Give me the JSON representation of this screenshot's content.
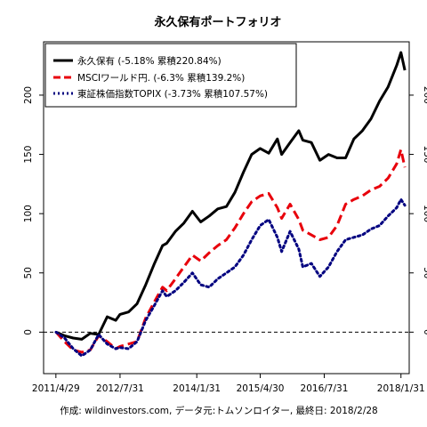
{
  "chart_data": {
    "type": "line",
    "title": "永久保有ポートフォリオ",
    "footer": "作成: wildinvestors.com, データ元:トムソンロイター, 最終日: 2018/2/28",
    "xlabel": "",
    "ylabel": "",
    "x_ticks": [
      {
        "date": "2011-04-29",
        "label": "2011/4/29"
      },
      {
        "date": "2012-07-31",
        "label": "2012/7/31"
      },
      {
        "date": "2014-01-31",
        "label": "2014/1/31"
      },
      {
        "date": "2015-04-30",
        "label": "2015/4/30"
      },
      {
        "date": "2016-07-31",
        "label": "2016/7/31"
      },
      {
        "date": "2018-01-31",
        "label": "2018/1/31"
      }
    ],
    "xlim": [
      "2011-01-31",
      "2018-03-31"
    ],
    "ylim": [
      -35,
      245
    ],
    "y_ticks": [
      0,
      50,
      100,
      150,
      200
    ],
    "reference_line": 0,
    "legend_position": "top-left",
    "series": [
      {
        "name": "永久保有 (-5.18% 累積220.84%)",
        "color": "#000000",
        "style": "solid",
        "points": [
          [
            "2011-04-30",
            0
          ],
          [
            "2011-06-30",
            -3
          ],
          [
            "2011-08-31",
            -5
          ],
          [
            "2011-10-31",
            -6
          ],
          [
            "2011-12-31",
            -1
          ],
          [
            "2012-02-29",
            -2
          ],
          [
            "2012-04-30",
            13
          ],
          [
            "2012-06-30",
            10
          ],
          [
            "2012-07-31",
            15
          ],
          [
            "2012-09-30",
            17
          ],
          [
            "2012-11-30",
            24
          ],
          [
            "2013-01-31",
            40
          ],
          [
            "2013-03-31",
            57
          ],
          [
            "2013-05-31",
            73
          ],
          [
            "2013-06-30",
            75
          ],
          [
            "2013-08-31",
            85
          ],
          [
            "2013-10-31",
            92
          ],
          [
            "2013-12-31",
            102
          ],
          [
            "2014-02-28",
            93
          ],
          [
            "2014-04-30",
            98
          ],
          [
            "2014-06-30",
            104
          ],
          [
            "2014-08-31",
            106
          ],
          [
            "2014-10-31",
            118
          ],
          [
            "2014-12-31",
            135
          ],
          [
            "2015-02-28",
            150
          ],
          [
            "2015-04-30",
            155
          ],
          [
            "2015-06-30",
            151
          ],
          [
            "2015-08-31",
            163
          ],
          [
            "2015-09-30",
            150
          ],
          [
            "2015-11-30",
            160
          ],
          [
            "2016-01-31",
            170
          ],
          [
            "2016-02-29",
            162
          ],
          [
            "2016-04-30",
            160
          ],
          [
            "2016-06-30",
            145
          ],
          [
            "2016-08-31",
            150
          ],
          [
            "2016-10-31",
            147
          ],
          [
            "2016-12-31",
            147
          ],
          [
            "2017-02-28",
            163
          ],
          [
            "2017-04-30",
            170
          ],
          [
            "2017-06-30",
            180
          ],
          [
            "2017-08-31",
            195
          ],
          [
            "2017-10-31",
            207
          ],
          [
            "2017-12-31",
            225
          ],
          [
            "2018-01-31",
            236
          ],
          [
            "2018-02-28",
            221
          ]
        ]
      },
      {
        "name": "MSCIワールド円. (-6.3% 累積139.2%)",
        "color": "#e8000b",
        "style": "dashed",
        "points": [
          [
            "2011-04-30",
            0
          ],
          [
            "2011-06-30",
            -8
          ],
          [
            "2011-08-31",
            -15
          ],
          [
            "2011-10-31",
            -17
          ],
          [
            "2011-12-31",
            -15
          ],
          [
            "2012-02-29",
            -3
          ],
          [
            "2012-04-30",
            -8
          ],
          [
            "2012-06-30",
            -14
          ],
          [
            "2012-07-31",
            -12
          ],
          [
            "2012-09-30",
            -10
          ],
          [
            "2012-11-30",
            -8
          ],
          [
            "2013-01-31",
            12
          ],
          [
            "2013-03-31",
            25
          ],
          [
            "2013-05-31",
            38
          ],
          [
            "2013-06-30",
            35
          ],
          [
            "2013-08-31",
            45
          ],
          [
            "2013-10-31",
            55
          ],
          [
            "2013-12-31",
            65
          ],
          [
            "2014-02-28",
            60
          ],
          [
            "2014-04-30",
            67
          ],
          [
            "2014-06-30",
            73
          ],
          [
            "2014-08-31",
            78
          ],
          [
            "2014-10-31",
            88
          ],
          [
            "2014-12-31",
            100
          ],
          [
            "2015-02-28",
            110
          ],
          [
            "2015-04-30",
            115
          ],
          [
            "2015-06-30",
            117
          ],
          [
            "2015-08-31",
            105
          ],
          [
            "2015-09-30",
            96
          ],
          [
            "2015-11-30",
            108
          ],
          [
            "2016-01-31",
            95
          ],
          [
            "2016-02-29",
            86
          ],
          [
            "2016-04-30",
            82
          ],
          [
            "2016-06-30",
            78
          ],
          [
            "2016-08-31",
            80
          ],
          [
            "2016-10-31",
            90
          ],
          [
            "2016-12-31",
            108
          ],
          [
            "2017-02-28",
            112
          ],
          [
            "2017-04-30",
            115
          ],
          [
            "2017-06-30",
            120
          ],
          [
            "2017-08-31",
            123
          ],
          [
            "2017-10-31",
            130
          ],
          [
            "2017-12-31",
            142
          ],
          [
            "2018-01-31",
            154
          ],
          [
            "2018-02-28",
            139
          ]
        ]
      },
      {
        "name": "東証株価指数TOPIX (-3.73% 累積107.57%)",
        "color": "#000080",
        "style": "dotted",
        "points": [
          [
            "2011-04-30",
            0
          ],
          [
            "2011-06-30",
            -5
          ],
          [
            "2011-08-31",
            -14
          ],
          [
            "2011-10-31",
            -20
          ],
          [
            "2011-12-31",
            -15
          ],
          [
            "2012-02-29",
            -2
          ],
          [
            "2012-04-30",
            -10
          ],
          [
            "2012-06-30",
            -14
          ],
          [
            "2012-07-31",
            -13
          ],
          [
            "2012-09-30",
            -14
          ],
          [
            "2012-11-30",
            -8
          ],
          [
            "2013-01-31",
            10
          ],
          [
            "2013-03-31",
            22
          ],
          [
            "2013-05-31",
            35
          ],
          [
            "2013-06-30",
            30
          ],
          [
            "2013-08-31",
            35
          ],
          [
            "2013-10-31",
            42
          ],
          [
            "2013-12-31",
            50
          ],
          [
            "2014-02-28",
            40
          ],
          [
            "2014-04-30",
            38
          ],
          [
            "2014-06-30",
            45
          ],
          [
            "2014-08-31",
            50
          ],
          [
            "2014-10-31",
            55
          ],
          [
            "2014-12-31",
            65
          ],
          [
            "2015-02-28",
            78
          ],
          [
            "2015-04-30",
            90
          ],
          [
            "2015-06-30",
            95
          ],
          [
            "2015-08-31",
            80
          ],
          [
            "2015-09-30",
            68
          ],
          [
            "2015-11-30",
            85
          ],
          [
            "2016-01-31",
            70
          ],
          [
            "2016-02-29",
            55
          ],
          [
            "2016-04-30",
            58
          ],
          [
            "2016-06-30",
            47
          ],
          [
            "2016-08-31",
            55
          ],
          [
            "2016-10-31",
            68
          ],
          [
            "2016-12-31",
            78
          ],
          [
            "2017-02-28",
            80
          ],
          [
            "2017-04-30",
            82
          ],
          [
            "2017-06-30",
            87
          ],
          [
            "2017-08-31",
            90
          ],
          [
            "2017-10-31",
            98
          ],
          [
            "2017-12-31",
            105
          ],
          [
            "2018-01-31",
            112
          ],
          [
            "2018-02-28",
            107
          ]
        ]
      }
    ]
  }
}
